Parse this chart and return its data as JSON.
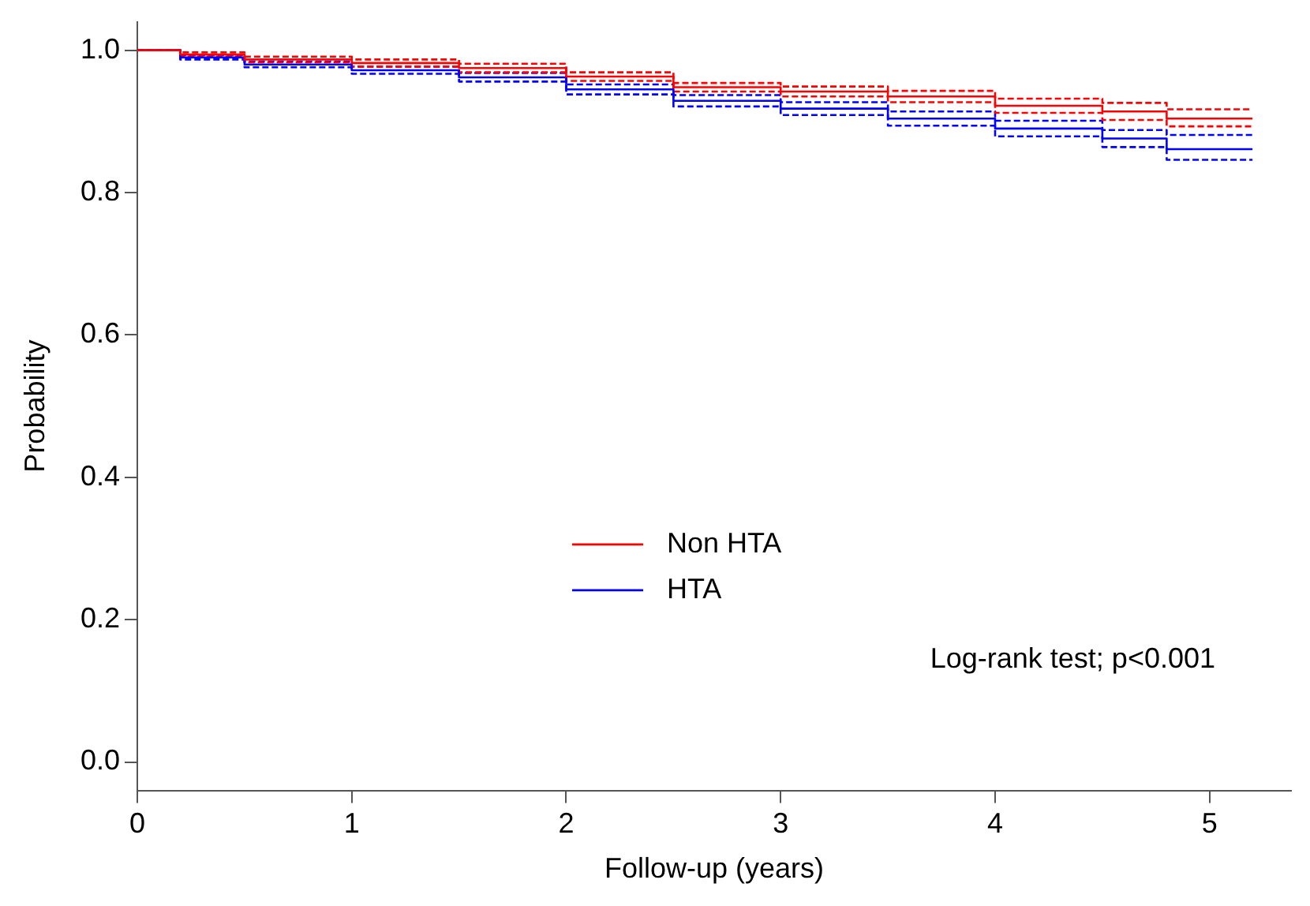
{
  "chart_data": {
    "type": "step",
    "xlabel": "Follow-up (years)",
    "ylabel": "Probability",
    "x": [
      0,
      0.2,
      0.5,
      1,
      1.5,
      2,
      2.5,
      3,
      3.5,
      4,
      4.5,
      4.8,
      5.06,
      5.2
    ],
    "series": [
      {
        "name": "Non HTA",
        "color": "#ff0000",
        "values": [
          1,
          1,
          0.994,
          0.987,
          0.982,
          0.975,
          0.963,
          0.948,
          0.942,
          0.935,
          0.922,
          0.914,
          0.904,
          0.904
        ]
      },
      {
        "name": "HTA",
        "color": "#0000ff",
        "values": [
          1,
          1,
          0.99,
          0.98,
          0.972,
          0.962,
          0.945,
          0.929,
          0.918,
          0.904,
          0.89,
          0.876,
          0.861,
          0.861
        ]
      },
      {
        "color": "#ff0000",
        "line_style": "dashed",
        "values": [
          1,
          1,
          0.991,
          0.983,
          0.977,
          0.969,
          0.957,
          0.942,
          0.935,
          0.927,
          0.912,
          0.902,
          0.893,
          0.893
        ]
      },
      {
        "color": "#ff0000",
        "line_style": "dashed",
        "values": [
          1,
          1,
          0.997,
          0.991,
          0.987,
          0.981,
          0.969,
          0.954,
          0.949,
          0.943,
          0.932,
          0.926,
          0.917,
          0.917
        ]
      },
      {
        "color": "#0000ff",
        "line_style": "dashed",
        "values": [
          1,
          1,
          0.987,
          0.976,
          0.967,
          0.956,
          0.938,
          0.921,
          0.909,
          0.894,
          0.879,
          0.864,
          0.846,
          0.846
        ]
      },
      {
        "color": "#0000ff",
        "line_style": "dashed",
        "values": [
          1,
          1,
          0.993,
          0.984,
          0.977,
          0.968,
          0.952,
          0.937,
          0.927,
          0.914,
          0.901,
          0.888,
          0.881,
          0.881
        ]
      }
    ],
    "xlim": [
      0,
      5.38
    ],
    "xticks": [
      0,
      1,
      2,
      3,
      4,
      5
    ],
    "ylim": [
      -0.04,
      1.04
    ],
    "yticks": [
      {
        "value": 0,
        "label": "0.0"
      },
      {
        "value": 0.2,
        "label": "0.2"
      },
      {
        "value": 0.4,
        "label": "0.4"
      },
      {
        "value": 0.6,
        "label": "0.6"
      },
      {
        "value": 0.8,
        "label": "0.8"
      },
      {
        "value": 1,
        "label": "1.0"
      }
    ],
    "grid": false,
    "legend": "center",
    "line_style": "solid",
    "marker": "none",
    "annotations": [
      "Log-rank test; p<0.001"
    ]
  }
}
